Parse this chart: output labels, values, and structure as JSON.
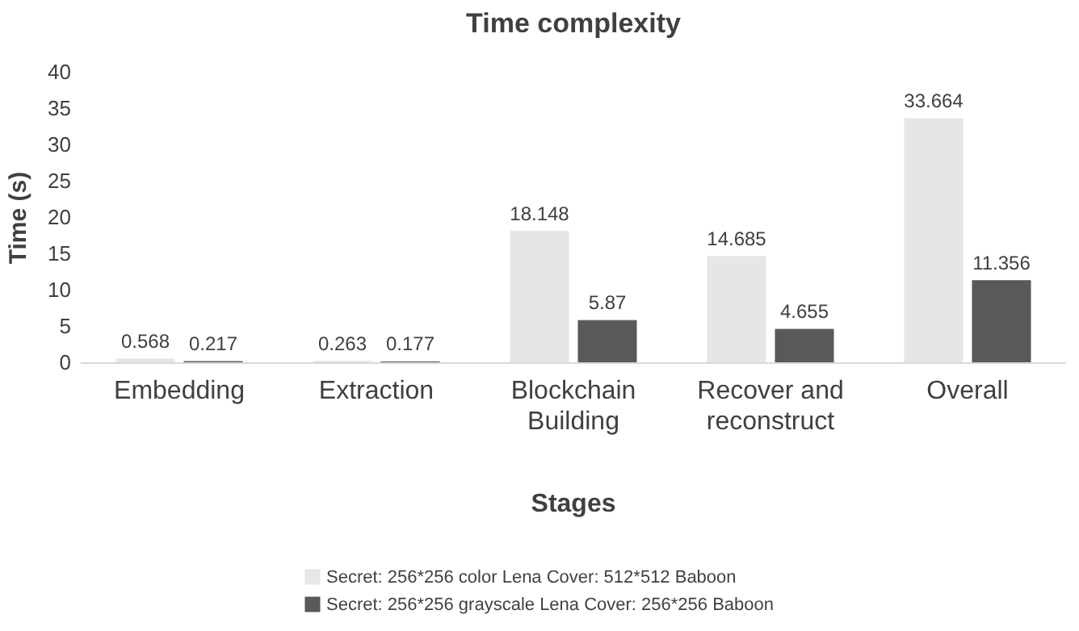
{
  "chart_data": {
    "type": "bar",
    "title": "Time complexity",
    "xlabel": "Stages",
    "ylabel": "Time (s)",
    "categories": [
      "Embedding",
      "Extraction",
      "Blockchain Building",
      "Recover and reconstruct",
      "Overall"
    ],
    "series": [
      {
        "name": "Secret: 256*256 color Lena Cover: 512*512 Baboon",
        "color": "#e7e6e6",
        "values": [
          0.568,
          0.263,
          18.148,
          14.685,
          33.664
        ]
      },
      {
        "name": "Secret: 256*256 grayscale Lena Cover: 256*256 Baboon",
        "color": "#595959",
        "values": [
          0.217,
          0.177,
          5.87,
          4.655,
          11.356
        ]
      }
    ],
    "ylim": [
      0,
      40
    ],
    "yticks": [
      0,
      5,
      10,
      15,
      20,
      25,
      30,
      35,
      40
    ],
    "grid": false,
    "legend": "bottom",
    "data_labels": true
  }
}
